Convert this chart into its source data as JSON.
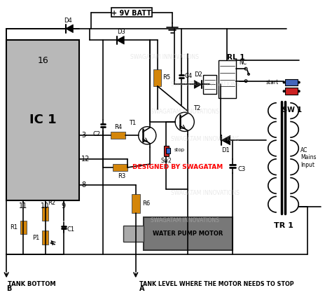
{
  "bg_color": "#ffffff",
  "watermark_text": "SWAGATAM INNOVATIONS",
  "watermark_color": "#cccccc",
  "resistor_color": "#d4860a",
  "ic_color": "#b8b8b8",
  "motor_color": "#787878",
  "motor_shaft_color": "#aaaaaa",
  "wire_color": "#000000",
  "red_text": "DESIGNED BY SWAGATAM",
  "bottom_label_b": "TANK BOTTOM",
  "bottom_label_a": "TANK LEVEL WHERE THE MOTOR NEEDS TO STOP"
}
